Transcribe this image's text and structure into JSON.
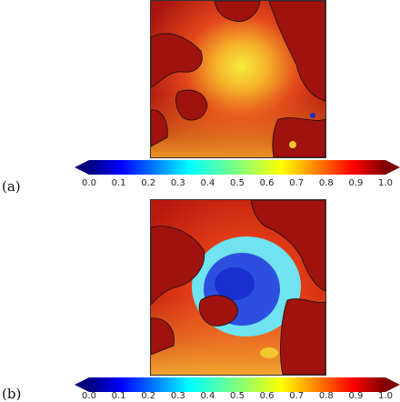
{
  "panels": [
    {
      "label": "(a)"
    },
    {
      "label": "(b)"
    }
  ],
  "colorbar": {
    "ticks": [
      "0.0",
      "0.1",
      "0.2",
      "0.3",
      "0.4",
      "0.5",
      "0.6",
      "0.7",
      "0.8",
      "0.9",
      "1.0"
    ],
    "range": [
      0.0,
      1.0
    ],
    "colormap": "jet",
    "extend": "both"
  },
  "colors": {
    "land_outline": "#111111",
    "high": "#a80f0f",
    "low": "#1a2fd0"
  }
}
